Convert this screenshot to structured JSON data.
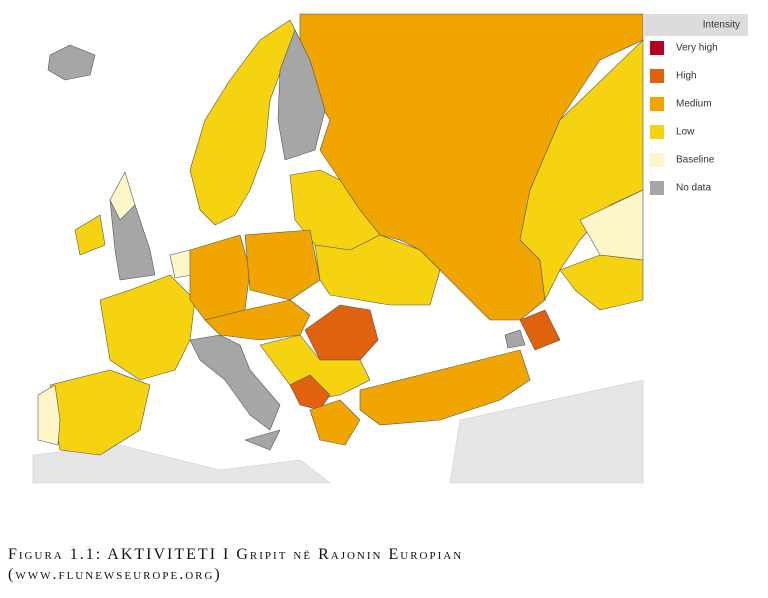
{
  "legend": {
    "title": "Intensity",
    "items": [
      {
        "label": "Very high",
        "color": "#b5001f"
      },
      {
        "label": "High",
        "color": "#e0620f"
      },
      {
        "label": "Medium",
        "color": "#f0a500"
      },
      {
        "label": "Low",
        "color": "#f5d311"
      },
      {
        "label": "Baseline",
        "color": "#fdf6c8"
      },
      {
        "label": "No data",
        "color": "#a6a6a6"
      }
    ]
  },
  "caption": {
    "line1": "Figura 1.1: AKTIVITETI I Gripit në Rajonin Europian",
    "line2": "(www.flunewseurope.org)"
  }
}
